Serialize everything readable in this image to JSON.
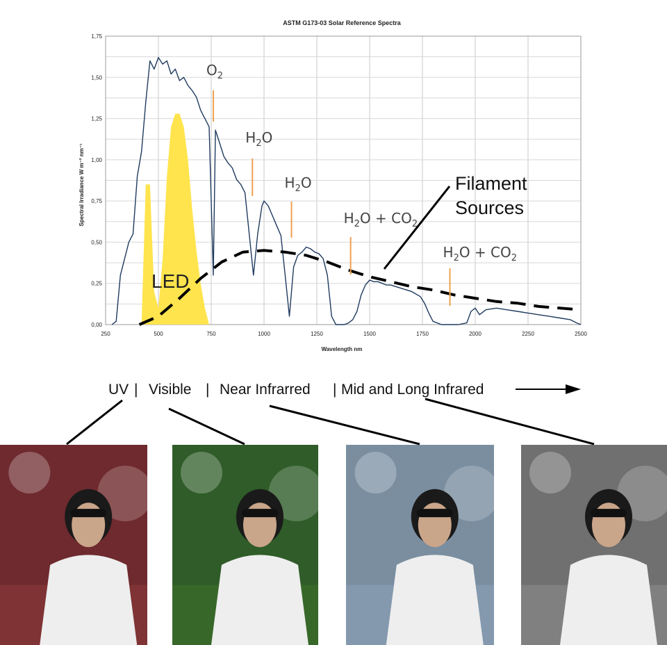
{
  "chart_data": {
    "type": "line",
    "title": "ASTM G173-03 Solar Reference Spectra",
    "xlabel": "Wavelength nm",
    "ylabel": "Spectral Irradiance W m⁻² nm⁻¹",
    "xlim": [
      250,
      2500
    ],
    "ylim": [
      0,
      1.75
    ],
    "x_ticks": [
      "250",
      "500",
      "750",
      "1000",
      "1250",
      "1500",
      "1750",
      "2000",
      "2250",
      "2500"
    ],
    "y_ticks": [
      "0,00",
      "0,25",
      "0,50",
      "0,75",
      "1,00",
      "1,25",
      "1,50",
      "1,75"
    ],
    "grid": true,
    "series": [
      {
        "name": "",
        "color": "#1f3a5f",
        "x": [
          280,
          300,
          320,
          340,
          360,
          380,
          400,
          420,
          440,
          460,
          480,
          500,
          520,
          540,
          560,
          580,
          600,
          620,
          640,
          660,
          680,
          700,
          720,
          740,
          760,
          770,
          790,
          810,
          830,
          850,
          870,
          890,
          910,
          930,
          950,
          970,
          990,
          1000,
          1020,
          1040,
          1060,
          1080,
          1100,
          1120,
          1140,
          1160,
          1180,
          1200,
          1220,
          1240,
          1260,
          1280,
          1300,
          1320,
          1340,
          1360,
          1380,
          1400,
          1420,
          1440,
          1460,
          1480,
          1500,
          1520,
          1540,
          1560,
          1580,
          1600,
          1650,
          1700,
          1740,
          1760,
          1780,
          1800,
          1840,
          1880,
          1920,
          1960,
          1980,
          2000,
          2020,
          2050,
          2100,
          2150,
          2200,
          2250,
          2300,
          2350,
          2400,
          2450,
          2480,
          2500
        ],
        "values": [
          0.0,
          0.02,
          0.3,
          0.4,
          0.5,
          0.55,
          0.9,
          1.05,
          1.35,
          1.6,
          1.55,
          1.62,
          1.58,
          1.6,
          1.52,
          1.55,
          1.48,
          1.5,
          1.45,
          1.42,
          1.38,
          1.3,
          1.25,
          1.2,
          0.3,
          1.18,
          1.1,
          1.02,
          0.98,
          0.95,
          0.88,
          0.85,
          0.8,
          0.55,
          0.3,
          0.55,
          0.72,
          0.75,
          0.72,
          0.66,
          0.6,
          0.54,
          0.3,
          0.05,
          0.35,
          0.42,
          0.44,
          0.47,
          0.46,
          0.44,
          0.43,
          0.4,
          0.3,
          0.05,
          0.0,
          0.0,
          0.0,
          0.01,
          0.03,
          0.08,
          0.18,
          0.24,
          0.27,
          0.26,
          0.26,
          0.25,
          0.24,
          0.24,
          0.22,
          0.2,
          0.17,
          0.13,
          0.07,
          0.02,
          0.0,
          0.0,
          0.0,
          0.01,
          0.08,
          0.1,
          0.06,
          0.09,
          0.1,
          0.09,
          0.08,
          0.07,
          0.06,
          0.05,
          0.04,
          0.03,
          0.01,
          0.0
        ]
      },
      {
        "name": "",
        "color": "#000000",
        "x": [
          410,
          500,
          600,
          700,
          800,
          900,
          1000,
          1100,
          1200,
          1300,
          1400,
          1500,
          1600,
          1700,
          1800,
          1900,
          2000,
          2100,
          2200,
          2300,
          2400,
          2500
        ],
        "values": [
          0.0,
          0.05,
          0.16,
          0.28,
          0.38,
          0.44,
          0.45,
          0.44,
          0.42,
          0.38,
          0.33,
          0.29,
          0.26,
          0.23,
          0.21,
          0.18,
          0.16,
          0.14,
          0.13,
          0.11,
          0.1,
          0.09
        ]
      },
      {
        "name": "",
        "color": "#ffe44d",
        "x": [
          420,
          440,
          460,
          480,
          500,
          520,
          540,
          560,
          580,
          600,
          620,
          640,
          660,
          680,
          700,
          720,
          740
        ],
        "values": [
          0.0,
          0.85,
          0.85,
          0.2,
          0.1,
          0.4,
          0.9,
          1.2,
          1.28,
          1.28,
          1.2,
          1.0,
          0.7,
          0.45,
          0.25,
          0.1,
          0.0
        ]
      }
    ],
    "annotations": [
      {
        "text": "O",
        "sub": "2",
        "x": 760
      },
      {
        "text": "H",
        "sub": "2",
        "after": "O",
        "x": 945
      },
      {
        "text": "H",
        "sub": "2",
        "after": "O",
        "x": 1130
      },
      {
        "text": "H",
        "sub": "2",
        "after": "O + CO",
        "sub2": "2",
        "x": 1410
      },
      {
        "text": "H",
        "sub": "2",
        "after": "O + CO",
        "sub2": "2",
        "x": 1880
      }
    ],
    "labels": {
      "led": "LED",
      "filament_line1": "Filament",
      "filament_line2": "Sources"
    }
  },
  "bands": {
    "uv": "UV",
    "sep": "|",
    "visible": "Visible",
    "near_ir": "Near Infrarred",
    "mid_long_ir": "Mid and Long Infrared"
  },
  "photos": [
    {
      "tint": "#8a3a3a",
      "bg": "#6e2a2e"
    },
    {
      "tint": "#3f6f2a",
      "bg": "#2f5c28"
    },
    {
      "tint": "#8aa0b8",
      "bg": "#7a8ea0"
    },
    {
      "tint": "#8a8a8a",
      "bg": "#707070"
    }
  ]
}
